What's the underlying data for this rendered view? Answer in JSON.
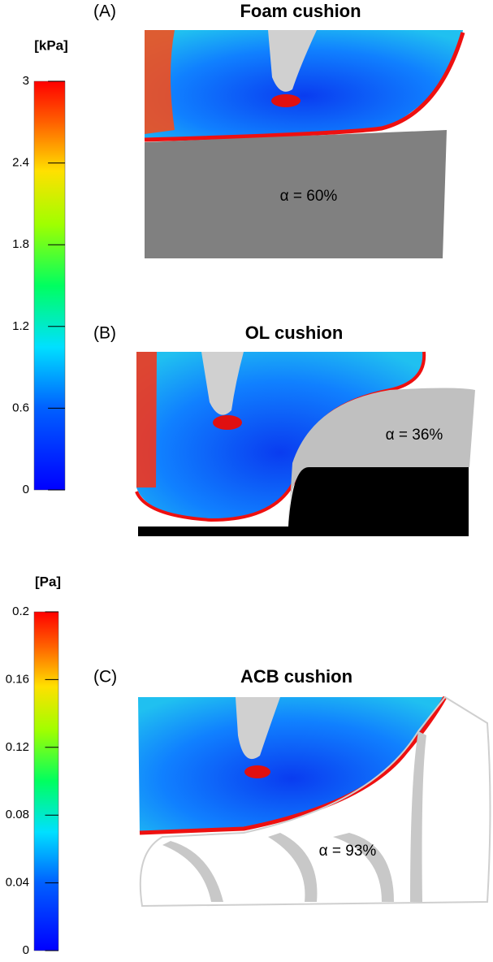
{
  "colorbars": [
    {
      "unit": "[kPa]",
      "min": 0,
      "max": 3,
      "ticks": [
        0,
        0.6,
        1.2,
        1.8,
        2.4,
        3
      ]
    },
    {
      "unit": "[Pa]",
      "min": 0,
      "max": 0.2,
      "ticks": [
        0,
        0.04,
        0.08,
        0.12,
        0.16,
        0.2
      ]
    }
  ],
  "panels": [
    {
      "label": "(A)",
      "title": "Foam cushion",
      "annotation": "α = 60%"
    },
    {
      "label": "(B)",
      "title": "OL cushion",
      "annotation": "α = 36%"
    },
    {
      "label": "(C)",
      "title": "ACB cushion",
      "annotation": "α = 93%"
    }
  ]
}
